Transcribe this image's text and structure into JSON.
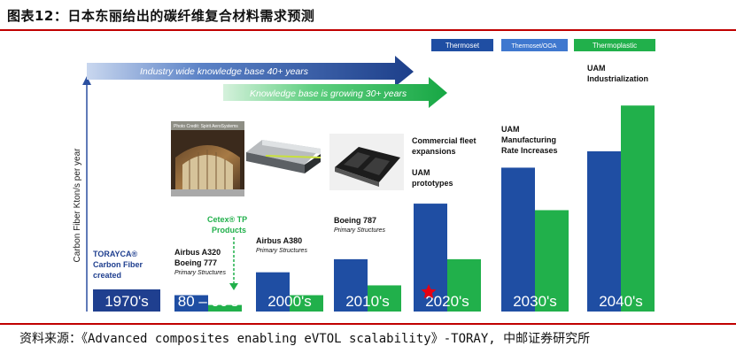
{
  "figure": {
    "title": "图表12：日本东丽给出的碳纤维复合材料需求预测",
    "source": "资料来源：《Advanced composites enabling eVTOL scalability》-TORAY, 中邮证券研究所"
  },
  "colors": {
    "thermoset": "#1f4ea3",
    "thermoplastic": "#21b04b",
    "decade_box": "#1f3f8f",
    "rule": "#c00000",
    "star": "#e60012"
  },
  "chart_data": {
    "type": "bar",
    "ylabel": "Carbon Fiber Kton/s per year",
    "legend": {
      "position": "top-right",
      "entries": [
        "Thermoset",
        "Thermoset/OOA",
        "Thermoplastic"
      ]
    },
    "categories": [
      "1970's",
      "80 – 90's",
      "2000's",
      "2010's",
      "2020's",
      "2030's",
      "2040's"
    ],
    "series": [
      {
        "name": "Thermoset",
        "values": [
          0,
          5,
          12,
          16,
          33,
          44,
          49
        ]
      },
      {
        "name": "Thermoplastic",
        "values": [
          0,
          2,
          5,
          8,
          16,
          31,
          63
        ]
      }
    ],
    "ylim": [
      0,
      72
    ],
    "arrows": [
      {
        "text": "Industry wide knowledge base 40+ years"
      },
      {
        "text": "Knowledge base is growing 30+ years"
      }
    ],
    "annotations": [
      {
        "lines": [
          "TORAYCA®",
          "Carbon Fiber",
          "created"
        ]
      },
      {
        "lines": [
          "Airbus A320",
          "Boeing 777"
        ],
        "sub": "Primary Structures"
      },
      {
        "lines": [
          "Cetex® TP",
          "Products"
        ]
      },
      {
        "lines": [
          "Airbus A380"
        ],
        "sub": "Primary Structures"
      },
      {
        "lines": [
          "Boeing 787"
        ],
        "sub": "Primary Structures"
      },
      {
        "lines": [
          "Commercial fleet",
          "expansions"
        ]
      },
      {
        "lines": [
          "UAM",
          "prototypes"
        ]
      },
      {
        "lines": [
          "UAM",
          "Manufacturing",
          "Rate Increases"
        ]
      },
      {
        "lines": [
          "UAM",
          "Industrialization"
        ]
      }
    ]
  }
}
